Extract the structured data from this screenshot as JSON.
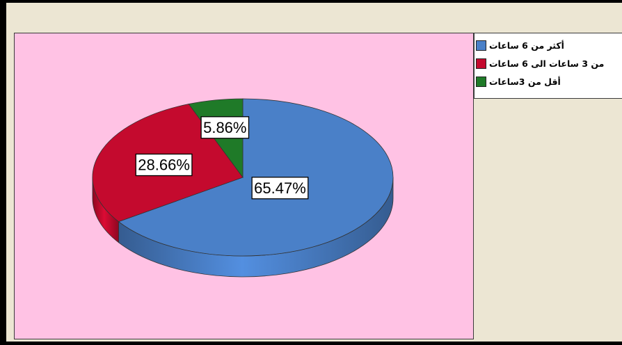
{
  "chart_data": {
    "type": "pie",
    "title": "",
    "series": [
      {
        "name": "",
        "slices": [
          {
            "label": "أكثر من 6 ساعات",
            "value": 65.47,
            "display": "65.47%",
            "color": "#4a80c8"
          },
          {
            "label": "من 3 ساعات الى 6 ساعات",
            "value": 28.66,
            "display": "28.66%",
            "color": "#c40a2e"
          },
          {
            "label": "أقل من 3ساعات",
            "value": 5.86,
            "display": "5.86%",
            "color": "#1f7a28"
          }
        ]
      }
    ],
    "legend_position": "top-right",
    "style": "3d"
  },
  "colors": {
    "plot_background": "#ffc2e4",
    "chart_background": "#ece6d3",
    "legend_background": "#ffffff"
  }
}
